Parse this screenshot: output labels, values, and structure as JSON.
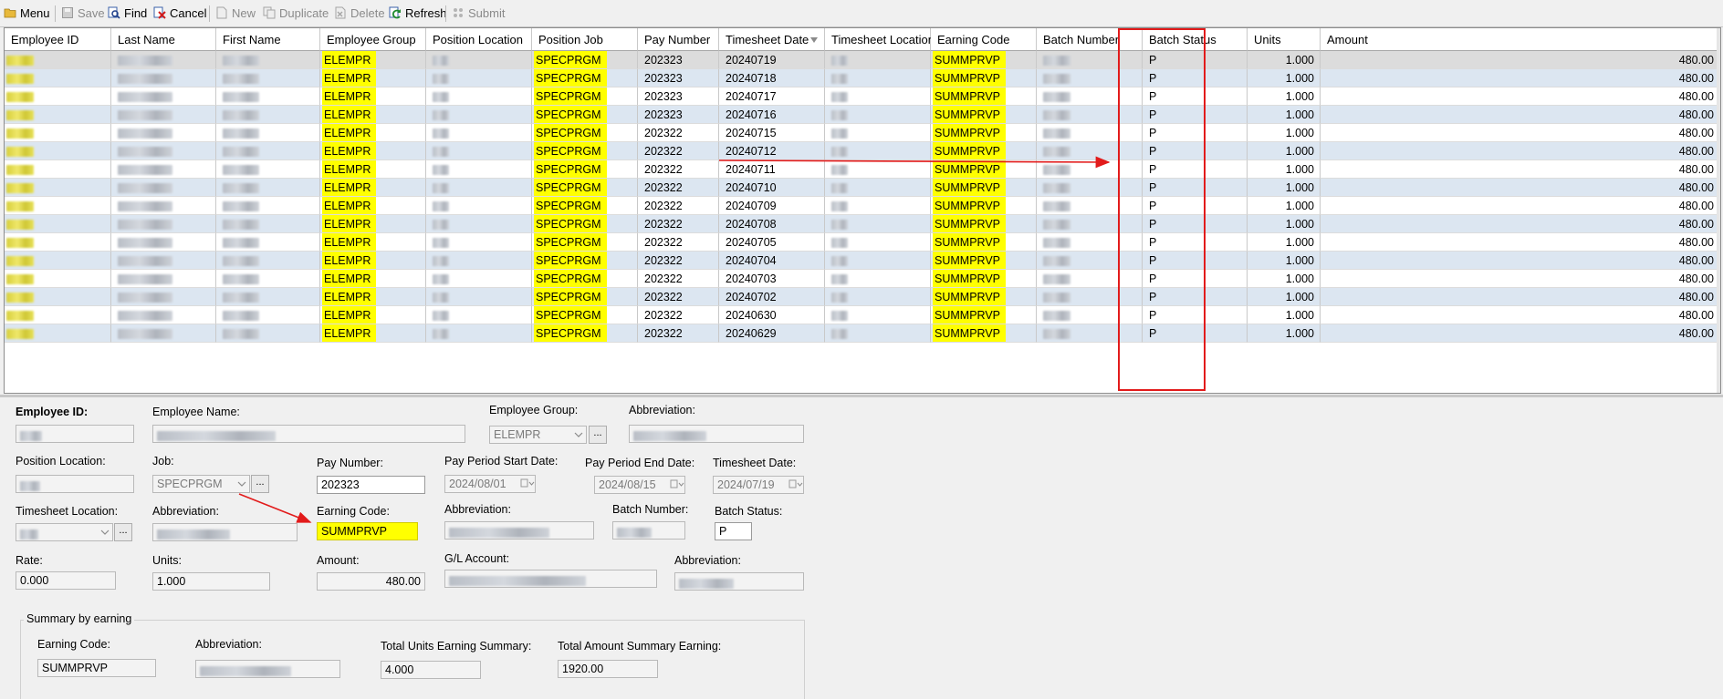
{
  "toolbar": {
    "items": [
      {
        "label": "Menu",
        "icon": "menu-folder-icon",
        "enabled": true
      },
      {
        "label": "Save",
        "icon": "save-icon",
        "enabled": false
      },
      {
        "label": "Find",
        "icon": "find-icon",
        "enabled": true
      },
      {
        "label": "Cancel",
        "icon": "cancel-icon",
        "enabled": true
      },
      {
        "label": "New",
        "icon": "new-icon",
        "enabled": false
      },
      {
        "label": "Duplicate",
        "icon": "duplicate-icon",
        "enabled": false
      },
      {
        "label": "Delete",
        "icon": "delete-icon",
        "enabled": false
      },
      {
        "label": "Refresh",
        "icon": "refresh-icon",
        "enabled": true
      },
      {
        "label": "Submit",
        "icon": "submit-icon",
        "enabled": false
      }
    ]
  },
  "grid": {
    "columns": [
      "Employee ID",
      "Last Name",
      "First Name",
      "Employee Group",
      "Position Location",
      "Position Job",
      "Pay Number",
      "Timesheet Date",
      "Timesheet Location",
      "Earning Code",
      "Batch Number",
      "Batch Status",
      "Units",
      "Amount"
    ],
    "sorted_column": "Timesheet Date",
    "rows": [
      {
        "employee_group": "ELEMPR",
        "position_job": "SPECPRGM",
        "pay_number": "202323",
        "timesheet_date": "20240719",
        "earning_code": "SUMMPRVP",
        "batch_status": "P",
        "units": "1.000",
        "amount": "480.00"
      },
      {
        "employee_group": "ELEMPR",
        "position_job": "SPECPRGM",
        "pay_number": "202323",
        "timesheet_date": "20240718",
        "earning_code": "SUMMPRVP",
        "batch_status": "P",
        "units": "1.000",
        "amount": "480.00"
      },
      {
        "employee_group": "ELEMPR",
        "position_job": "SPECPRGM",
        "pay_number": "202323",
        "timesheet_date": "20240717",
        "earning_code": "SUMMPRVP",
        "batch_status": "P",
        "units": "1.000",
        "amount": "480.00"
      },
      {
        "employee_group": "ELEMPR",
        "position_job": "SPECPRGM",
        "pay_number": "202323",
        "timesheet_date": "20240716",
        "earning_code": "SUMMPRVP",
        "batch_status": "P",
        "units": "1.000",
        "amount": "480.00"
      },
      {
        "employee_group": "ELEMPR",
        "position_job": "SPECPRGM",
        "pay_number": "202322",
        "timesheet_date": "20240715",
        "earning_code": "SUMMPRVP",
        "batch_status": "P",
        "units": "1.000",
        "amount": "480.00"
      },
      {
        "employee_group": "ELEMPR",
        "position_job": "SPECPRGM",
        "pay_number": "202322",
        "timesheet_date": "20240712",
        "earning_code": "SUMMPRVP",
        "batch_status": "P",
        "units": "1.000",
        "amount": "480.00"
      },
      {
        "employee_group": "ELEMPR",
        "position_job": "SPECPRGM",
        "pay_number": "202322",
        "timesheet_date": "20240711",
        "earning_code": "SUMMPRVP",
        "batch_status": "P",
        "units": "1.000",
        "amount": "480.00"
      },
      {
        "employee_group": "ELEMPR",
        "position_job": "SPECPRGM",
        "pay_number": "202322",
        "timesheet_date": "20240710",
        "earning_code": "SUMMPRVP",
        "batch_status": "P",
        "units": "1.000",
        "amount": "480.00"
      },
      {
        "employee_group": "ELEMPR",
        "position_job": "SPECPRGM",
        "pay_number": "202322",
        "timesheet_date": "20240709",
        "earning_code": "SUMMPRVP",
        "batch_status": "P",
        "units": "1.000",
        "amount": "480.00"
      },
      {
        "employee_group": "ELEMPR",
        "position_job": "SPECPRGM",
        "pay_number": "202322",
        "timesheet_date": "20240708",
        "earning_code": "SUMMPRVP",
        "batch_status": "P",
        "units": "1.000",
        "amount": "480.00"
      },
      {
        "employee_group": "ELEMPR",
        "position_job": "SPECPRGM",
        "pay_number": "202322",
        "timesheet_date": "20240705",
        "earning_code": "SUMMPRVP",
        "batch_status": "P",
        "units": "1.000",
        "amount": "480.00"
      },
      {
        "employee_group": "ELEMPR",
        "position_job": "SPECPRGM",
        "pay_number": "202322",
        "timesheet_date": "20240704",
        "earning_code": "SUMMPRVP",
        "batch_status": "P",
        "units": "1.000",
        "amount": "480.00"
      },
      {
        "employee_group": "ELEMPR",
        "position_job": "SPECPRGM",
        "pay_number": "202322",
        "timesheet_date": "20240703",
        "earning_code": "SUMMPRVP",
        "batch_status": "P",
        "units": "1.000",
        "amount": "480.00"
      },
      {
        "employee_group": "ELEMPR",
        "position_job": "SPECPRGM",
        "pay_number": "202322",
        "timesheet_date": "20240702",
        "earning_code": "SUMMPRVP",
        "batch_status": "P",
        "units": "1.000",
        "amount": "480.00"
      },
      {
        "employee_group": "ELEMPR",
        "position_job": "SPECPRGM",
        "pay_number": "202322",
        "timesheet_date": "20240630",
        "earning_code": "SUMMPRVP",
        "batch_status": "P",
        "units": "1.000",
        "amount": "480.00"
      },
      {
        "employee_group": "ELEMPR",
        "position_job": "SPECPRGM",
        "pay_number": "202322",
        "timesheet_date": "20240629",
        "earning_code": "SUMMPRVP",
        "batch_status": "P",
        "units": "1.000",
        "amount": "480.00"
      }
    ]
  },
  "detail": {
    "employee_id_label": "Employee ID:",
    "employee_name_label": "Employee Name:",
    "employee_group_label": "Employee Group:",
    "employee_group_value": "ELEMPR",
    "abbreviation_label": "Abbreviation:",
    "position_location_label": "Position Location:",
    "job_label": "Job:",
    "job_value": "SPECPRGM",
    "pay_number_label": "Pay Number:",
    "pay_number_value": "202323",
    "pay_period_start_label": "Pay Period Start Date:",
    "pay_period_start_value": "2024/08/01",
    "pay_period_end_label": "Pay Period End Date:",
    "pay_period_end_value": "2024/08/15",
    "timesheet_date_label": "Timesheet Date:",
    "timesheet_date_value": "2024/07/19",
    "timesheet_location_label": "Timesheet Location:",
    "earning_code_label": "Earning Code:",
    "earning_code_value": "SUMMPRVP",
    "batch_number_label": "Batch Number:",
    "batch_status_label": "Batch Status:",
    "batch_status_value": "P",
    "rate_label": "Rate:",
    "rate_value": "0.000",
    "units_label": "Units:",
    "units_value": "1.000",
    "amount_label": "Amount:",
    "amount_value": "480.00",
    "gl_account_label": "G/L Account:"
  },
  "summary": {
    "title": "Summary by earning",
    "earning_code_label": "Earning Code:",
    "earning_code_value": "SUMMPRVP",
    "abbreviation_label": "Abbreviation:",
    "total_units_label": "Total Units Earning Summary:",
    "total_units_value": "4.000",
    "total_amount_label": "Total Amount Summary Earning:",
    "total_amount_value": "1920.00"
  },
  "colors": {
    "highlight": "#ffff00",
    "row_alt": "#dce6f1",
    "row_selected": "#dcdcdc",
    "annotation_red": "#e21b1b"
  }
}
